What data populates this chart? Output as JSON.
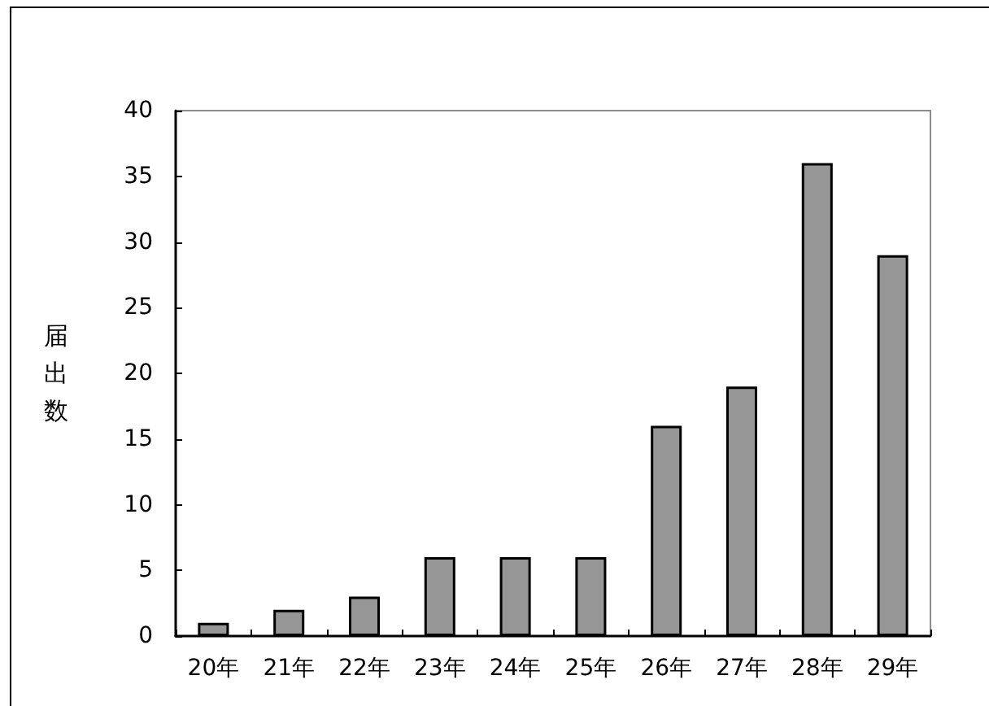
{
  "chart_data": {
    "type": "bar",
    "categories": [
      "20年",
      "21年",
      "22年",
      "23年",
      "24年",
      "25年",
      "26年",
      "27年",
      "28年",
      "29年"
    ],
    "values": [
      1,
      2,
      3,
      6,
      6,
      6,
      16,
      19,
      36,
      29
    ],
    "color": "#969696",
    "ylabel": "届出数",
    "ylim": [
      0,
      40
    ],
    "yticks": [
      0,
      5,
      10,
      15,
      20,
      25,
      30,
      35,
      40
    ]
  }
}
